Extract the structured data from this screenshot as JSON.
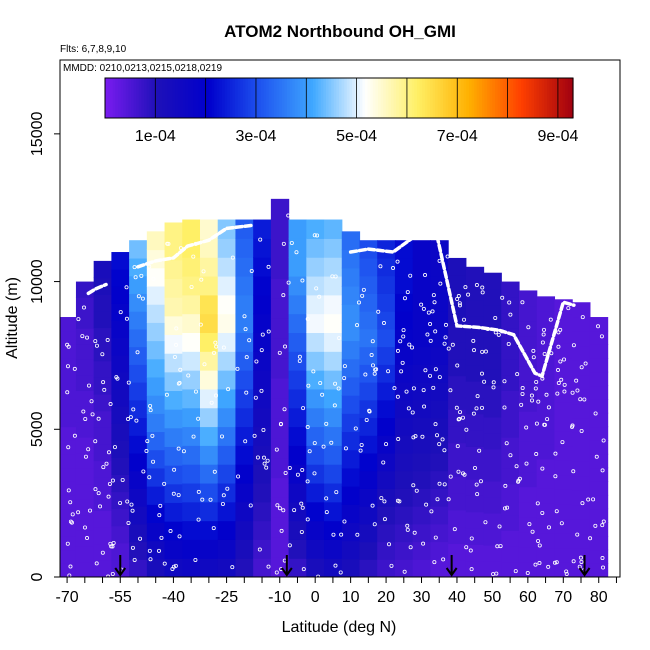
{
  "chart_data": {
    "type": "heatmap",
    "title": "ATOM2 Northbound OH_GMI",
    "subtitle_flights": "Flts: 6,7,8,9,10",
    "subtitle_dates": "MMDD: 0210,0213,0215,0218,0219",
    "xlabel": "Latitude (deg N)",
    "ylabel": "Altitude (m)",
    "xlim": [
      -72,
      86
    ],
    "ylim": [
      0,
      17500
    ],
    "x_ticks": [
      -70,
      -55,
      -40,
      -25,
      -10,
      0,
      10,
      20,
      30,
      40,
      50,
      60,
      70,
      80
    ],
    "y_ticks": [
      0,
      5000,
      10000,
      15000
    ],
    "colorbar": {
      "min": 0,
      "max": 0.00093,
      "ticks": [
        0.0001,
        0.0003,
        0.0005,
        0.0007,
        0.0009
      ],
      "tick_labels": [
        "1e-04",
        "3e-04",
        "5e-04",
        "7e-04",
        "9e-04"
      ],
      "colors": [
        "#7a1cf0",
        "#1e10b8",
        "#0000cc",
        "#1f55f0",
        "#3fa8ff",
        "#ffffff",
        "#fff066",
        "#ffb000",
        "#ff4000",
        "#a00010"
      ]
    },
    "columns": [
      {
        "lat": -70,
        "top": 8800,
        "profile": [
          4e-05,
          4e-05,
          4e-05,
          4e-05,
          4e-05,
          4e-05,
          4e-05,
          4e-05,
          4e-05,
          4e-05,
          4e-05,
          5e-05,
          5e-05,
          5e-05,
          5e-05,
          5e-05,
          5e-05,
          5e-05,
          5e-05
        ]
      },
      {
        "lat": -65,
        "top": 10000,
        "profile": [
          4e-05,
          4e-05,
          4e-05,
          4e-05,
          4e-05,
          4e-05,
          4e-05,
          4e-05,
          4e-05,
          5e-05,
          5e-05,
          5e-05,
          6e-05,
          6e-05,
          6e-05,
          6e-05,
          7e-05,
          7e-05,
          8e-05
        ]
      },
      {
        "lat": -60,
        "top": 10700,
        "profile": [
          4e-05,
          4e-05,
          4e-05,
          4e-05,
          5e-05,
          5e-05,
          5e-05,
          6e-05,
          6e-05,
          6e-05,
          7e-05,
          8e-05,
          8e-05,
          9e-05,
          9e-05,
          0.0001,
          0.0001,
          0.00011,
          0.00012
        ]
      },
      {
        "lat": -55,
        "top": 11000,
        "profile": [
          5e-05,
          5e-05,
          6e-05,
          7e-05,
          8e-05,
          9e-05,
          0.0001,
          0.00011,
          0.00012,
          0.00013,
          0.00014,
          0.00015,
          0.00016,
          0.00017,
          0.00018,
          0.00019,
          0.0002,
          0.00021,
          0.00022
        ]
      },
      {
        "lat": -50,
        "top": 11400,
        "profile": [
          8e-05,
          0.0001,
          0.00012,
          0.00014,
          0.00016,
          0.00018,
          0.0002,
          0.00022,
          0.00024,
          0.00026,
          0.00028,
          0.0003,
          0.00032,
          0.00034,
          0.00036,
          0.00038,
          0.0004,
          0.00042,
          0.00044
        ]
      },
      {
        "lat": -45,
        "top": 11700,
        "profile": [
          0.00012,
          0.00015,
          0.00018,
          0.00021,
          0.00024,
          0.00027,
          0.0003,
          0.00033,
          0.00036,
          0.00038,
          0.0004,
          0.00042,
          0.00044,
          0.00046,
          0.00048,
          0.0005,
          0.00052,
          0.00054,
          0.00056
        ]
      },
      {
        "lat": -40,
        "top": 12000,
        "profile": [
          0.00015,
          0.00018,
          0.00021,
          0.00024,
          0.00027,
          0.0003,
          0.00033,
          0.00036,
          0.00039,
          0.00042,
          0.00045,
          0.00048,
          0.00051,
          0.00054,
          0.00057,
          0.00058,
          0.00059,
          0.0006,
          0.0006
        ]
      },
      {
        "lat": -35,
        "top": 12100,
        "profile": [
          0.00016,
          0.00019,
          0.00022,
          0.00025,
          0.00028,
          0.00031,
          0.00034,
          0.00037,
          0.0004,
          0.00043,
          0.00046,
          0.00049,
          0.00052,
          0.00055,
          0.00058,
          0.0006,
          0.00061,
          0.00062,
          0.00062
        ]
      },
      {
        "lat": -30,
        "top": 12100,
        "profile": [
          0.00015,
          0.00018,
          0.00022,
          0.00026,
          0.0003,
          0.00034,
          0.00038,
          0.00042,
          0.00046,
          0.0005,
          0.00054,
          0.00058,
          0.00062,
          0.00065,
          0.00064,
          0.0006,
          0.00058,
          0.00056,
          0.00055
        ]
      },
      {
        "lat": -25,
        "top": 12100,
        "profile": [
          0.00014,
          0.00017,
          0.0002,
          0.00023,
          0.00026,
          0.00029,
          0.00032,
          0.00035,
          0.00038,
          0.00041,
          0.00044,
          0.00047,
          0.0005,
          0.00053,
          0.00052,
          0.0005,
          0.00048,
          0.00046,
          0.00045
        ]
      },
      {
        "lat": -20,
        "top": 12100,
        "profile": [
          0.0001,
          0.00012,
          0.00014,
          0.00016,
          0.00018,
          0.0002,
          0.00022,
          0.00024,
          0.00026,
          0.00028,
          0.0003,
          0.00032,
          0.00034,
          0.00036,
          0.00036,
          0.00035,
          0.00034,
          0.00033,
          0.00032
        ]
      },
      {
        "lat": -15,
        "top": 12100,
        "profile": [
          6e-05,
          7e-05,
          8e-05,
          9e-05,
          0.0001,
          0.00011,
          0.00012,
          0.00013,
          0.00014,
          0.00015,
          0.00016,
          0.00017,
          0.00018,
          0.00019,
          0.0002,
          0.00021,
          0.00022,
          0.00023,
          0.00024
        ]
      },
      {
        "lat": -10,
        "top": 12800,
        "profile": [
          4e-05,
          4e-05,
          4e-05,
          4e-05,
          4e-05,
          5e-05,
          5e-05,
          5e-05,
          5e-05,
          5e-05,
          6e-05,
          6e-05,
          6e-05,
          6e-05,
          6e-05,
          7e-05,
          7e-05,
          7e-05,
          7e-05
        ]
      },
      {
        "lat": -5,
        "top": 12100,
        "profile": [
          8e-05,
          0.0001,
          0.00012,
          0.00014,
          0.00016,
          0.00018,
          0.0002,
          0.00022,
          0.00024,
          0.00026,
          0.00028,
          0.0003,
          0.00032,
          0.00034,
          0.00036,
          0.00038,
          0.0004,
          0.0004,
          0.0004
        ]
      },
      {
        "lat": 0,
        "top": 12100,
        "profile": [
          0.00012,
          0.00015,
          0.00018,
          0.00021,
          0.00024,
          0.00027,
          0.0003,
          0.00033,
          0.00036,
          0.00039,
          0.00042,
          0.00045,
          0.00048,
          0.00051,
          0.0005,
          0.00048,
          0.00046,
          0.00044,
          0.00042
        ]
      },
      {
        "lat": 5,
        "top": 12100,
        "profile": [
          0.00014,
          0.00017,
          0.0002,
          0.00023,
          0.00026,
          0.00029,
          0.00032,
          0.00035,
          0.00038,
          0.00041,
          0.00044,
          0.00047,
          0.0005,
          0.00052,
          0.00051,
          0.00049,
          0.00047,
          0.00045,
          0.00043
        ]
      },
      {
        "lat": 10,
        "top": 11700,
        "profile": [
          0.00012,
          0.00014,
          0.00016,
          0.00018,
          0.0002,
          0.00022,
          0.00024,
          0.00026,
          0.00028,
          0.0003,
          0.00032,
          0.00034,
          0.00036,
          0.00038,
          0.00038,
          0.00037,
          0.00036,
          0.00035,
          0.00034
        ]
      },
      {
        "lat": 15,
        "top": 11400,
        "profile": [
          9e-05,
          0.00011,
          0.00013,
          0.00015,
          0.00017,
          0.00019,
          0.00021,
          0.00023,
          0.00025,
          0.00027,
          0.00029,
          0.00031,
          0.00033,
          0.00035,
          0.00034,
          0.00033,
          0.00032,
          0.00031,
          0.0003
        ]
      },
      {
        "lat": 20,
        "top": 11400,
        "profile": [
          7e-05,
          8e-05,
          9e-05,
          0.0001,
          0.00012,
          0.00014,
          0.00016,
          0.00018,
          0.0002,
          0.00022,
          0.00024,
          0.00026,
          0.00028,
          0.0003,
          0.00029,
          0.00028,
          0.00027,
          0.00026,
          0.00025
        ]
      },
      {
        "lat": 25,
        "top": 11400,
        "profile": [
          6e-05,
          7e-05,
          8e-05,
          9e-05,
          0.0001,
          0.00011,
          0.00012,
          0.00013,
          0.00014,
          0.00015,
          0.00016,
          0.00017,
          0.00018,
          0.00019,
          0.0002,
          0.00021,
          0.00022,
          0.00022,
          0.00022
        ]
      },
      {
        "lat": 30,
        "top": 11400,
        "profile": [
          5e-05,
          6e-05,
          7e-05,
          8e-05,
          9e-05,
          0.0001,
          0.00011,
          0.00012,
          0.00013,
          0.00014,
          0.00015,
          0.00016,
          0.00017,
          0.00018,
          0.00018,
          0.00018,
          0.00018,
          0.00018,
          0.00018
        ]
      },
      {
        "lat": 35,
        "top": 11400,
        "profile": [
          4e-05,
          5e-05,
          6e-05,
          7e-05,
          8e-05,
          9e-05,
          0.0001,
          0.00011,
          0.00012,
          0.00013,
          0.00014,
          0.00015,
          0.00016,
          0.00017,
          0.00017,
          0.00017,
          0.00017,
          0.00017,
          0.00017
        ]
      },
      {
        "lat": 40,
        "top": 10800,
        "profile": [
          4e-05,
          4e-05,
          5e-05,
          5e-05,
          6e-05,
          6e-05,
          7e-05,
          7e-05,
          8e-05,
          8e-05,
          9e-05,
          9e-05,
          0.0001,
          0.0001,
          0.0001,
          0.00011,
          0.00011,
          0.00011,
          0.00011
        ]
      },
      {
        "lat": 45,
        "top": 10500,
        "profile": [
          4e-05,
          4e-05,
          5e-05,
          5e-05,
          6e-05,
          6e-05,
          7e-05,
          7e-05,
          8e-05,
          8e-05,
          9e-05,
          9e-05,
          0.0001,
          0.0001,
          0.0001,
          0.0001,
          0.0001,
          0.0001,
          0.0001
        ]
      },
      {
        "lat": 50,
        "top": 10300,
        "profile": [
          4e-05,
          4e-05,
          5e-05,
          5e-05,
          6e-05,
          6e-05,
          7e-05,
          7e-05,
          8e-05,
          8e-05,
          9e-05,
          9e-05,
          0.0001,
          0.0001,
          0.0001,
          0.0001,
          0.0001,
          0.0001,
          0.0001
        ]
      },
      {
        "lat": 55,
        "top": 10000,
        "profile": [
          4e-05,
          4e-05,
          4e-05,
          5e-05,
          5e-05,
          5e-05,
          6e-05,
          6e-05,
          6e-05,
          7e-05,
          7e-05,
          7e-05,
          8e-05,
          8e-05,
          8e-05,
          8e-05,
          8e-05,
          8e-05,
          8e-05
        ]
      },
      {
        "lat": 60,
        "top": 9700,
        "profile": [
          4e-05,
          4e-05,
          4e-05,
          4e-05,
          4e-05,
          4e-05,
          5e-05,
          5e-05,
          5e-05,
          5e-05,
          5e-05,
          6e-05,
          6e-05,
          6e-05,
          6e-05,
          6e-05,
          6e-05,
          6e-05,
          6e-05
        ]
      },
      {
        "lat": 65,
        "top": 9500,
        "profile": [
          4e-05,
          4e-05,
          4e-05,
          4e-05,
          4e-05,
          4e-05,
          4e-05,
          4e-05,
          5e-05,
          5e-05,
          5e-05,
          5e-05,
          5e-05,
          5e-05,
          5e-05,
          5e-05,
          5e-05,
          5e-05,
          5e-05
        ]
      },
      {
        "lat": 70,
        "top": 9400,
        "profile": [
          4e-05,
          4e-05,
          4e-05,
          4e-05,
          4e-05,
          4e-05,
          4e-05,
          4e-05,
          4e-05,
          4e-05,
          4e-05,
          4e-05,
          4e-05,
          4e-05,
          4e-05,
          4e-05,
          4e-05,
          4e-05,
          4e-05
        ]
      },
      {
        "lat": 75,
        "top": 9300,
        "profile": [
          4e-05,
          4e-05,
          4e-05,
          4e-05,
          4e-05,
          4e-05,
          4e-05,
          4e-05,
          4e-05,
          4e-05,
          4e-05,
          4e-05,
          4e-05,
          4e-05,
          4e-05,
          4e-05,
          4e-05,
          4e-05,
          4e-05
        ]
      },
      {
        "lat": 80,
        "top": 8800,
        "profile": [
          4e-05,
          4e-05,
          4e-05,
          4e-05,
          4e-05,
          4e-05,
          4e-05,
          4e-05,
          4e-05,
          4e-05,
          4e-05,
          4e-05,
          4e-05,
          4e-05,
          4e-05,
          4e-05,
          4e-05,
          4e-05,
          4e-05
        ]
      }
    ],
    "flight_track": [
      {
        "lat": -64,
        "alt": 9600
      },
      {
        "lat": -62,
        "alt": 9750
      },
      {
        "lat": -59,
        "alt": 9900
      },
      {
        "lat": -50,
        "alt": 10500
      },
      {
        "lat": -45,
        "alt": 10700
      },
      {
        "lat": -40,
        "alt": 10800
      },
      {
        "lat": -36,
        "alt": 11200
      },
      {
        "lat": -30,
        "alt": 11400
      },
      {
        "lat": -25,
        "alt": 11800
      },
      {
        "lat": -18,
        "alt": 11900
      },
      {
        "lat": 10,
        "alt": 11000
      },
      {
        "lat": 15,
        "alt": 11100
      },
      {
        "lat": 22,
        "alt": 11000
      },
      {
        "lat": 30,
        "alt": 11700
      },
      {
        "lat": 34,
        "alt": 11750
      },
      {
        "lat": 40,
        "alt": 8500
      },
      {
        "lat": 46,
        "alt": 8450
      },
      {
        "lat": 52,
        "alt": 8350
      },
      {
        "lat": 56,
        "alt": 8200
      },
      {
        "lat": 62,
        "alt": 6900
      },
      {
        "lat": 64,
        "alt": 6800
      },
      {
        "lat": 70,
        "alt": 9300
      },
      {
        "lat": 73,
        "alt": 9200
      }
    ],
    "airports_lat": [
      -55,
      -8,
      38.5,
      76
    ]
  }
}
